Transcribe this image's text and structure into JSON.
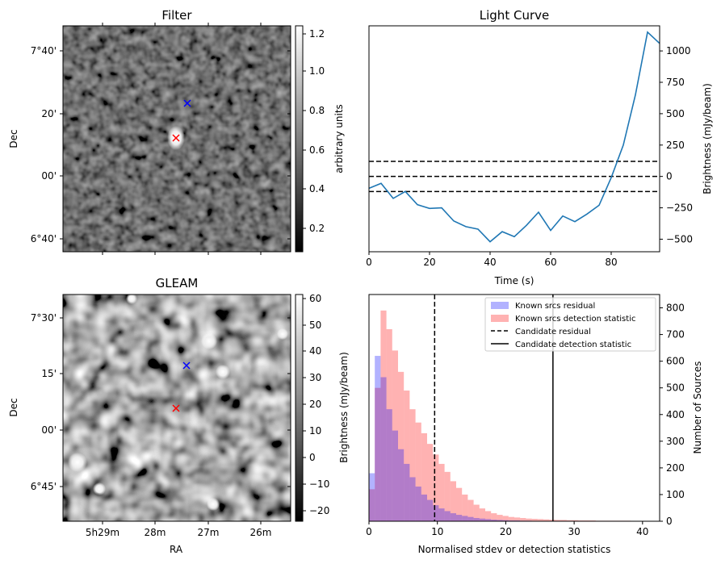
{
  "filter_panel": {
    "title": "Filter",
    "ylabel": "Dec",
    "y_ticks": [
      "7°40'",
      "20'",
      "00'",
      "6°40'"
    ],
    "colorbar": {
      "label": "arbitrary units",
      "ticks": [
        "1.2",
        "1.0",
        "0.8",
        "0.6",
        "0.4",
        "0.2"
      ]
    }
  },
  "gleam_panel": {
    "title": "GLEAM",
    "ylabel": "Dec",
    "xlabel": "RA",
    "y_ticks": [
      "7°30'",
      "15'",
      "00'",
      "6°45'"
    ],
    "x_ticks": [
      "5h29m",
      "28m",
      "27m",
      "26m"
    ],
    "colorbar": {
      "label": "Brightness (mJy/beam)",
      "ticks": [
        "60",
        "50",
        "40",
        "30",
        "20",
        "10",
        "0",
        "−10",
        "−20"
      ]
    }
  },
  "markers": {
    "red_color": "#ff0000",
    "blue_color": "#0000ff"
  },
  "chart_data": [
    {
      "type": "line",
      "title": "Light Curve",
      "xlabel": "Time (s)",
      "ylabel": "Brightness (mJy/beam)",
      "xlim": [
        0,
        96
      ],
      "ylim": [
        -600,
        1200
      ],
      "x_ticks": [
        0,
        20,
        40,
        60,
        80
      ],
      "y_ticks": [
        -500,
        -250,
        0,
        250,
        500,
        750,
        1000
      ],
      "series": [
        {
          "color": "#1f77b4",
          "x": [
            0,
            4,
            8,
            12,
            16,
            20,
            24,
            28,
            32,
            36,
            40,
            44,
            48,
            52,
            56,
            60,
            64,
            68,
            72,
            76,
            80,
            84,
            88,
            92,
            96
          ],
          "y": [
            -95,
            -55,
            -175,
            -120,
            -225,
            -255,
            -250,
            -355,
            -400,
            -420,
            -520,
            -440,
            -480,
            -390,
            -285,
            -430,
            -315,
            -360,
            -300,
            -230,
            -10,
            250,
            650,
            1150,
            1060
          ]
        }
      ],
      "hlines": [
        {
          "y": 120,
          "style": "dashed"
        },
        {
          "y": 0,
          "style": "dashed"
        },
        {
          "y": -120,
          "style": "dashed"
        }
      ]
    },
    {
      "type": "bar",
      "xlabel": "Normalised stdev or detection statistics",
      "ylabel": "Number of Sources",
      "xlim": [
        0,
        42.5
      ],
      "ylim": [
        0,
        850
      ],
      "x_ticks": [
        0,
        10,
        20,
        30,
        40
      ],
      "y_ticks": [
        0,
        100,
        200,
        300,
        400,
        500,
        600,
        700,
        800
      ],
      "legend_position": "top-right",
      "bin_width": 0.85,
      "series": [
        {
          "name": "Known srcs residual",
          "color": "#0000ff",
          "alpha": 0.3,
          "start": 0,
          "values": [
            180,
            620,
            540,
            420,
            340,
            270,
            215,
            165,
            130,
            100,
            80,
            60,
            48,
            38,
            30,
            24,
            20,
            16,
            12,
            10,
            8,
            6,
            5,
            4,
            3,
            3,
            2,
            2,
            1,
            1,
            1,
            1
          ]
        },
        {
          "name": "Known srcs detection statistic",
          "color": "#ff0000",
          "alpha": 0.3,
          "start": 0,
          "values": [
            120,
            500,
            790,
            720,
            640,
            560,
            490,
            420,
            370,
            330,
            290,
            250,
            215,
            185,
            150,
            125,
            100,
            80,
            62,
            48,
            38,
            30,
            24,
            20,
            16,
            14,
            12,
            10,
            9,
            8,
            7,
            6,
            5,
            5,
            4,
            4,
            3,
            3,
            3,
            2,
            2,
            2,
            2,
            2,
            2,
            1,
            1,
            1
          ]
        }
      ],
      "vlines": [
        {
          "x": 9.6,
          "name": "Candidate residual",
          "style": "dashed"
        },
        {
          "x": 26.9,
          "name": "Candidate detection statistic",
          "style": "solid"
        }
      ]
    }
  ]
}
